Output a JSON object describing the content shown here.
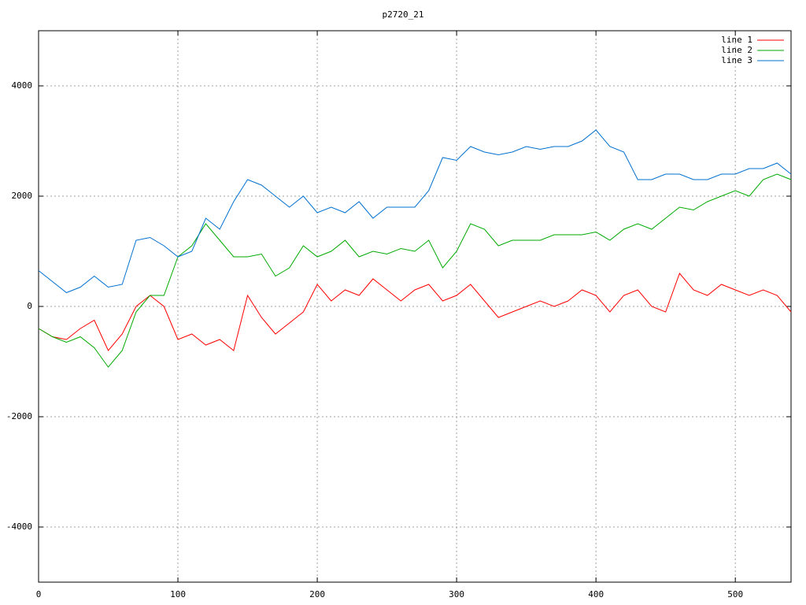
{
  "chart_data": {
    "type": "line",
    "title": "p2720_21",
    "x": [
      0,
      10,
      20,
      30,
      40,
      50,
      60,
      70,
      80,
      90,
      100,
      110,
      120,
      130,
      140,
      150,
      160,
      170,
      180,
      190,
      200,
      210,
      220,
      230,
      240,
      250,
      260,
      270,
      280,
      290,
      300,
      310,
      320,
      330,
      340,
      350,
      360,
      370,
      380,
      390,
      400,
      410,
      420,
      430,
      440,
      450,
      460,
      470,
      480,
      490,
      500,
      510,
      520,
      530,
      540
    ],
    "series": [
      {
        "name": "line 1",
        "color": "#ff0000",
        "values": [
          -400,
          -550,
          -600,
          -400,
          -250,
          -800,
          -500,
          0,
          200,
          0,
          -600,
          -500,
          -700,
          -600,
          -800,
          200,
          -200,
          -500,
          -300,
          -100,
          400,
          100,
          300,
          200,
          500,
          300,
          100,
          300,
          400,
          100,
          200,
          400,
          100,
          -200,
          -100,
          0,
          100,
          0,
          100,
          300,
          200,
          -100,
          200,
          300,
          0,
          -100,
          600,
          300,
          200,
          400,
          300,
          200,
          300,
          200,
          -100
        ]
      },
      {
        "name": "line 2",
        "color": "#00aa00",
        "values": [
          -400,
          -550,
          -650,
          -550,
          -750,
          -1100,
          -800,
          -100,
          200,
          200,
          900,
          1100,
          1500,
          1200,
          900,
          900,
          950,
          550,
          700,
          1100,
          900,
          1000,
          1200,
          900,
          1000,
          950,
          1050,
          1000,
          1200,
          700,
          1000,
          1500,
          1400,
          1100,
          1200,
          1200,
          1200,
          1300,
          1300,
          1300,
          1350,
          1200,
          1400,
          1500,
          1400,
          1600,
          1800,
          1750,
          1900,
          2000,
          2100,
          2000,
          2300,
          2400,
          2300
        ]
      },
      {
        "name": "line 3",
        "color": "#0070d0",
        "values": [
          650,
          450,
          250,
          350,
          550,
          350,
          400,
          1200,
          1250,
          1100,
          900,
          1000,
          1600,
          1400,
          1900,
          2300,
          2200,
          2000,
          1800,
          2000,
          1700,
          1800,
          1700,
          1900,
          1600,
          1800,
          1800,
          1800,
          2100,
          2700,
          2650,
          2900,
          2800,
          2750,
          2800,
          2900,
          2850,
          2900,
          2900,
          3000,
          3200,
          2900,
          2800,
          2300,
          2300,
          2400,
          2400,
          2300,
          2300,
          2400,
          2400,
          2500,
          2500,
          2600,
          2400
        ]
      }
    ],
    "xlim": [
      0,
      540
    ],
    "xticks": [
      0,
      100,
      200,
      300,
      400,
      500
    ],
    "ylim": [
      -5000,
      5000
    ],
    "yticks": [
      -4000,
      -2000,
      0,
      2000,
      4000
    ],
    "grid": true,
    "legend": "top-right"
  }
}
